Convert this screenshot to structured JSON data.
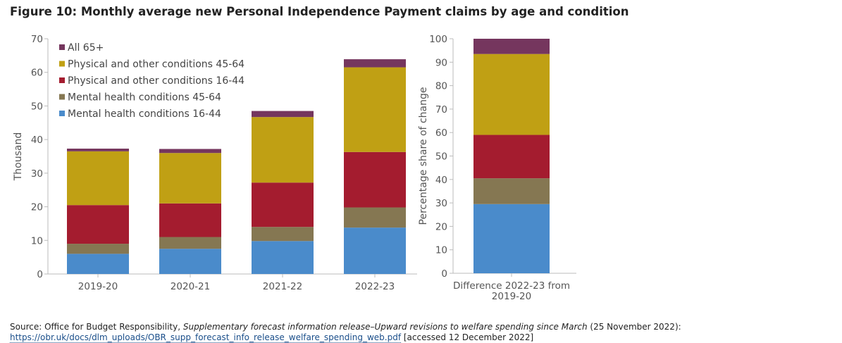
{
  "figure": {
    "title": "Figure 10: Monthly average new Personal Independence Payment claims by age and condition"
  },
  "colors": {
    "mh1644": "#4a8bcb",
    "mh4564": "#857752",
    "ph1644": "#a41c2f",
    "ph4564": "#c0a014",
    "all65": "#75365e",
    "axis": "#bbbbbb",
    "text": "#555555"
  },
  "chart_data": [
    {
      "type": "bar",
      "stacked": true,
      "title": "",
      "xlabel": "",
      "ylabel": "Thousand",
      "ylim": [
        0,
        70
      ],
      "yticks": [
        0,
        10,
        20,
        30,
        40,
        50,
        60,
        70
      ],
      "categories": [
        "2019-20",
        "2020-21",
        "2021-22",
        "2022-23"
      ],
      "legend_position": "top-left",
      "legend_order": [
        "All 65+",
        "Physical and other conditions 45-64",
        "Physical and other conditions 16-44",
        "Mental health conditions 45-64",
        "Mental health conditions 16-44"
      ],
      "series": [
        {
          "name": "Mental health conditions 16-44",
          "color_key": "mh1644",
          "values": [
            6.0,
            7.5,
            9.8,
            13.8
          ]
        },
        {
          "name": "Mental health conditions 45-64",
          "color_key": "mh4564",
          "values": [
            3.0,
            3.5,
            4.2,
            6.0
          ]
        },
        {
          "name": "Physical and other conditions 16-44",
          "color_key": "ph1644",
          "values": [
            11.5,
            10.0,
            13.2,
            16.5
          ]
        },
        {
          "name": "Physical and other conditions 45-64",
          "color_key": "ph4564",
          "values": [
            16.0,
            15.0,
            19.5,
            25.2
          ]
        },
        {
          "name": "All 65+",
          "color_key": "all65",
          "values": [
            0.8,
            1.2,
            1.8,
            2.4
          ]
        }
      ]
    },
    {
      "type": "bar",
      "stacked": true,
      "title": "",
      "xlabel": "",
      "ylabel": "Percentage share of change",
      "ylim": [
        0,
        100
      ],
      "yticks": [
        0,
        10,
        20,
        30,
        40,
        50,
        60,
        70,
        80,
        90,
        100
      ],
      "categories": [
        "Difference 2022-23 from 2019-20"
      ],
      "category_lines": [
        "Difference 2022-23 from",
        "2019-20"
      ],
      "series": [
        {
          "name": "Mental health conditions 16-44",
          "color_key": "mh1644",
          "values": [
            29.5
          ]
        },
        {
          "name": "Mental health conditions 45-64",
          "color_key": "mh4564",
          "values": [
            11.0
          ]
        },
        {
          "name": "Physical and other conditions 16-44",
          "color_key": "ph1644",
          "values": [
            18.5
          ]
        },
        {
          "name": "Physical and other conditions 45-64",
          "color_key": "ph4564",
          "values": [
            34.5
          ]
        },
        {
          "name": "All 65+",
          "color_key": "all65",
          "values": [
            6.5
          ]
        }
      ]
    }
  ],
  "source": {
    "prefix": "Source: Office for Budget Responsibility, ",
    "publication": "Supplementary forecast information release–Upward revisions to welfare spending since March",
    "date": " (25 November 2022): ",
    "url": "https://obr.uk/docs/dlm_uploads/OBR_supp_forecast_info_release_welfare_spending_web.pdf",
    "accessed": " [accessed 12 December 2022]"
  }
}
